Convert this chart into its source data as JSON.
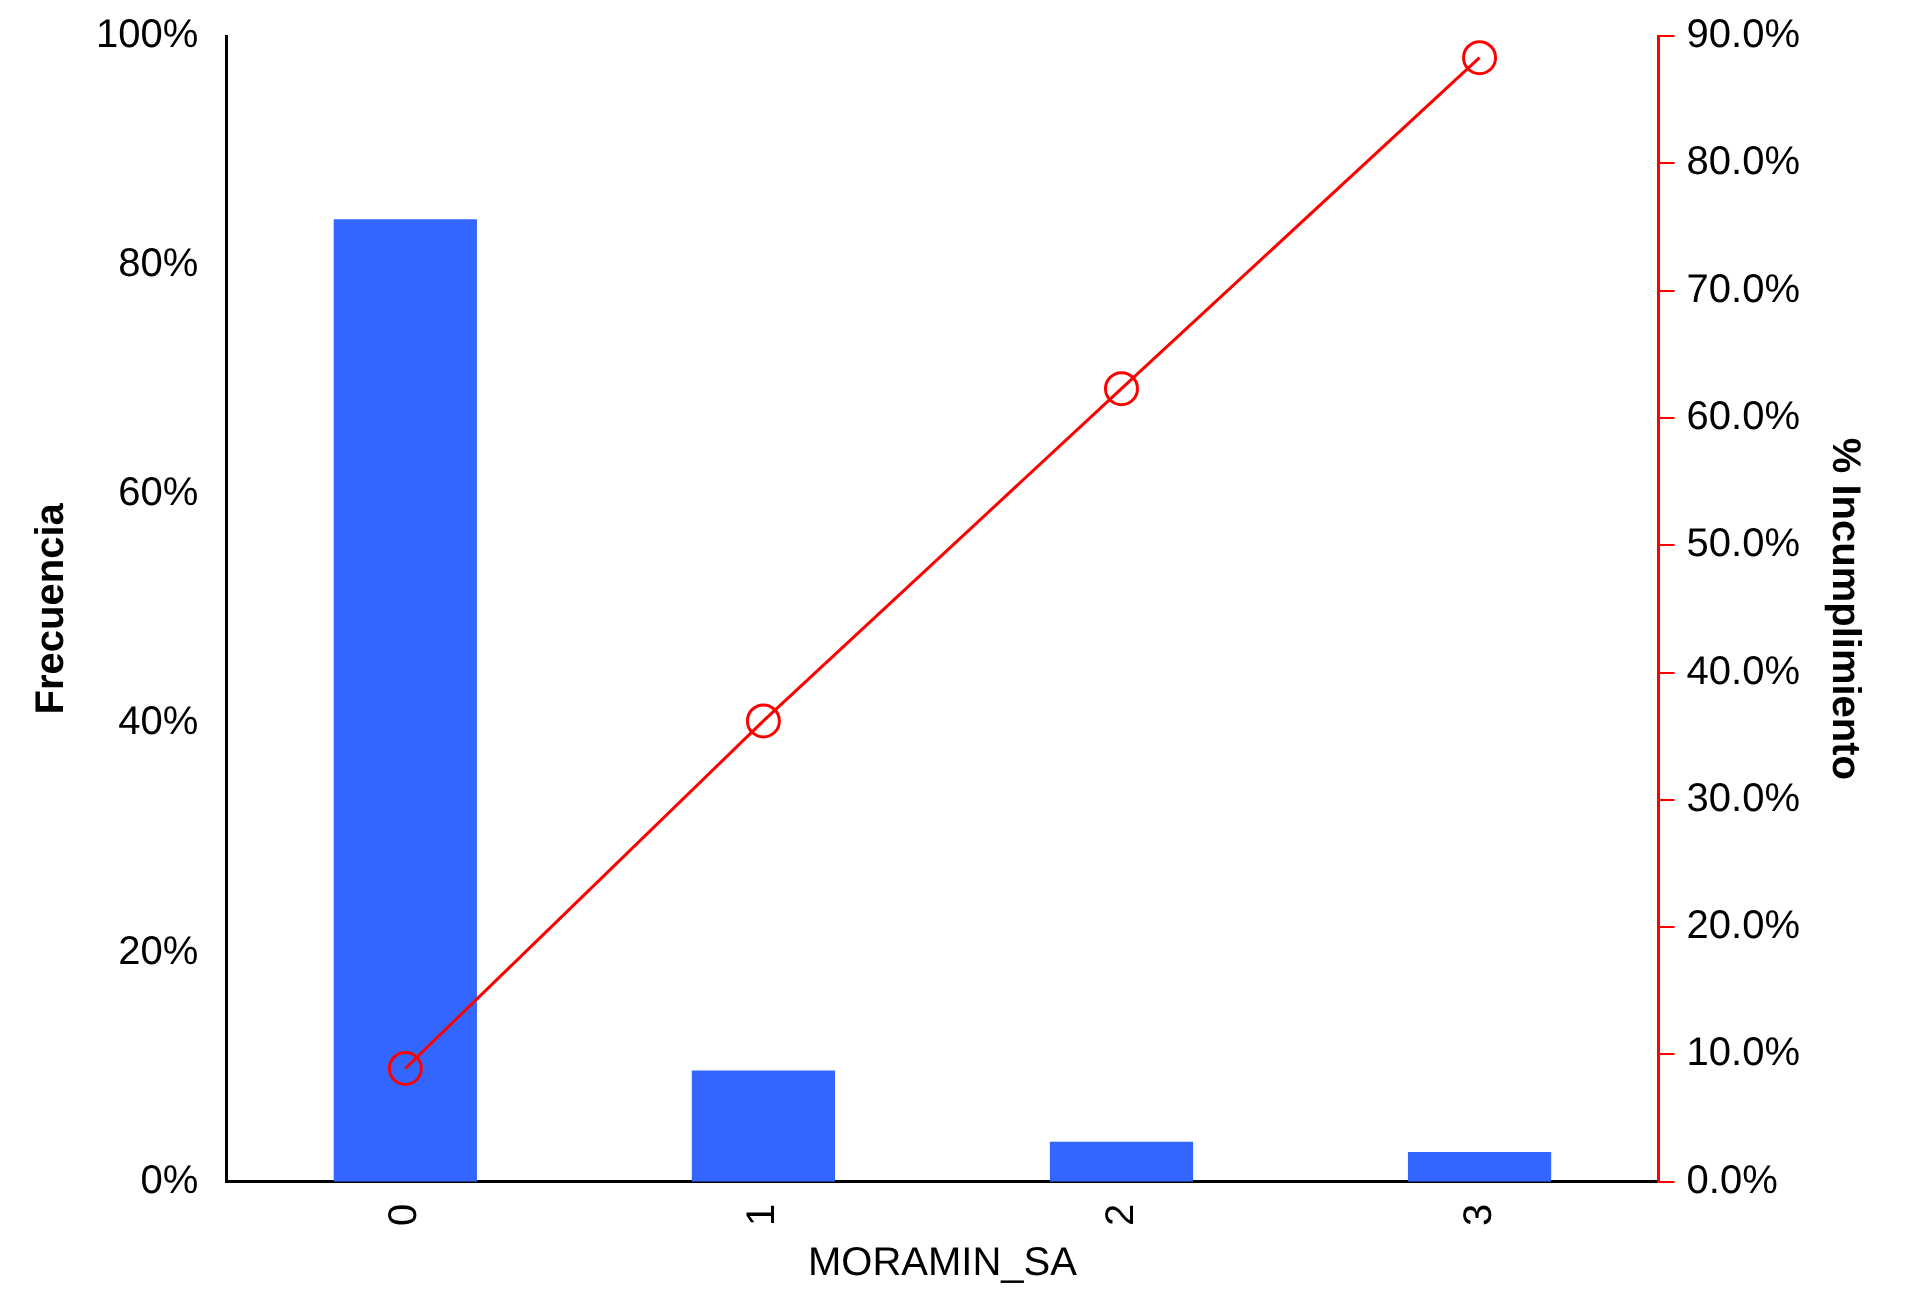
{
  "chart_data": {
    "type": "bar",
    "xlabel": "MORAMIN_SA",
    "ylabel": "Frecuencia",
    "y2label": "% Incumplimiento",
    "categories": [
      "0",
      "1",
      "2",
      "3"
    ],
    "series": [
      {
        "color": "#3366ff",
        "values": [
          84,
          9.7,
          3.5,
          2.6
        ]
      },
      {
        "type": "line",
        "axis": "y2",
        "color": "#ff0000",
        "values": [
          8.9,
          36.2,
          62.3,
          88.3
        ]
      }
    ],
    "ylim": [
      0,
      100
    ],
    "yticks": [
      {
        "value": 0,
        "label": "0%"
      },
      {
        "value": 20,
        "label": "20%"
      },
      {
        "value": 40,
        "label": "40%"
      },
      {
        "value": 60,
        "label": "60%"
      },
      {
        "value": 80,
        "label": "80%"
      },
      {
        "value": 100,
        "label": "100%"
      }
    ],
    "y2lim": [
      0,
      90
    ],
    "y2ticks": [
      {
        "value": 0,
        "label": "0.0%"
      },
      {
        "value": 10,
        "label": "10.0%"
      },
      {
        "value": 20,
        "label": "20.0%"
      },
      {
        "value": 30,
        "label": "30.0%"
      },
      {
        "value": 40,
        "label": "40.0%"
      },
      {
        "value": 50,
        "label": "50.0%"
      },
      {
        "value": 60,
        "label": "60.0%"
      },
      {
        "value": 70,
        "label": "70.0%"
      },
      {
        "value": 80,
        "label": "80.0%"
      },
      {
        "value": 90,
        "label": "90.0%"
      }
    ],
    "grid": false,
    "legend": false,
    "marker": "circle",
    "line_style": "solid"
  }
}
